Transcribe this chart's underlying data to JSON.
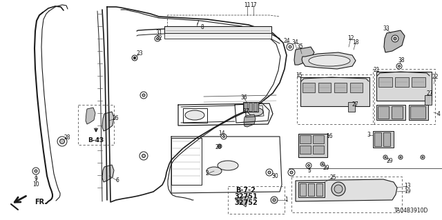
{
  "bg_color": "#ffffff",
  "fig_width": 6.4,
  "fig_height": 3.19,
  "dpi": 100,
  "diagram_code": "TA04B3910D",
  "b_codes": [
    "B-7-2",
    "32751",
    "32752"
  ],
  "b43_label": "B-43",
  "fr_label": "FR.",
  "line_color": "#1a1a1a",
  "text_color": "#111111"
}
